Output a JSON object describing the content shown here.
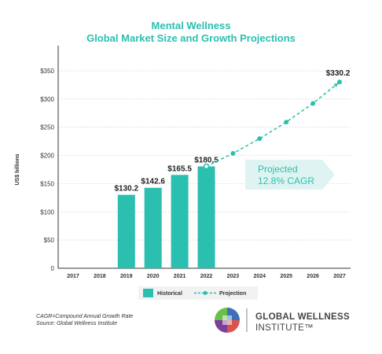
{
  "chart_data": {
    "type": "bar",
    "title": "Mental Wellness",
    "subtitle": "Global Market Size and Growth Projections",
    "ylabel": "US$ billions",
    "xlabel": "",
    "ylim": [
      0,
      350
    ],
    "yticks": [
      "0",
      "$50",
      "$100",
      "$150",
      "$200",
      "$250",
      "$300",
      "$350"
    ],
    "categories": [
      "2017",
      "2018",
      "2019",
      "2020",
      "2021",
      "2022",
      "2023",
      "2024",
      "2025",
      "2026",
      "2027"
    ],
    "series": [
      {
        "name": "Historical",
        "type": "bar",
        "x": [
          "2019",
          "2020",
          "2021",
          "2022"
        ],
        "values": [
          130.2,
          142.6,
          165.5,
          180.5
        ],
        "labels": [
          "$130.2",
          "$142.6",
          "$165.5",
          "$180.5"
        ]
      },
      {
        "name": "Projection",
        "type": "line",
        "x": [
          "2022",
          "2023",
          "2024",
          "2025",
          "2026",
          "2027"
        ],
        "values": [
          180.5,
          203.6,
          229.7,
          259.1,
          292.2,
          330.2
        ],
        "end_label": "$330.2"
      }
    ],
    "callout": [
      "Projected",
      "12.8% CAGR"
    ],
    "legend": {
      "placement": "bottom",
      "items": [
        "Historical",
        "Projection"
      ]
    },
    "grid": true,
    "colors": {
      "accent": "#2bbfb0",
      "grid": "#cccccc",
      "axis": "#333333",
      "callout_bg": "#dff4f2"
    }
  },
  "footnote": {
    "line1": "CAGR=Compound Annual Growth Rate",
    "line2": "Source: Global Wellness Institute"
  },
  "brand": {
    "line1": "GLOBAL WELLNESS",
    "line2": "INSTITUTE™",
    "logo_icon": "gwi-logo-icon"
  }
}
